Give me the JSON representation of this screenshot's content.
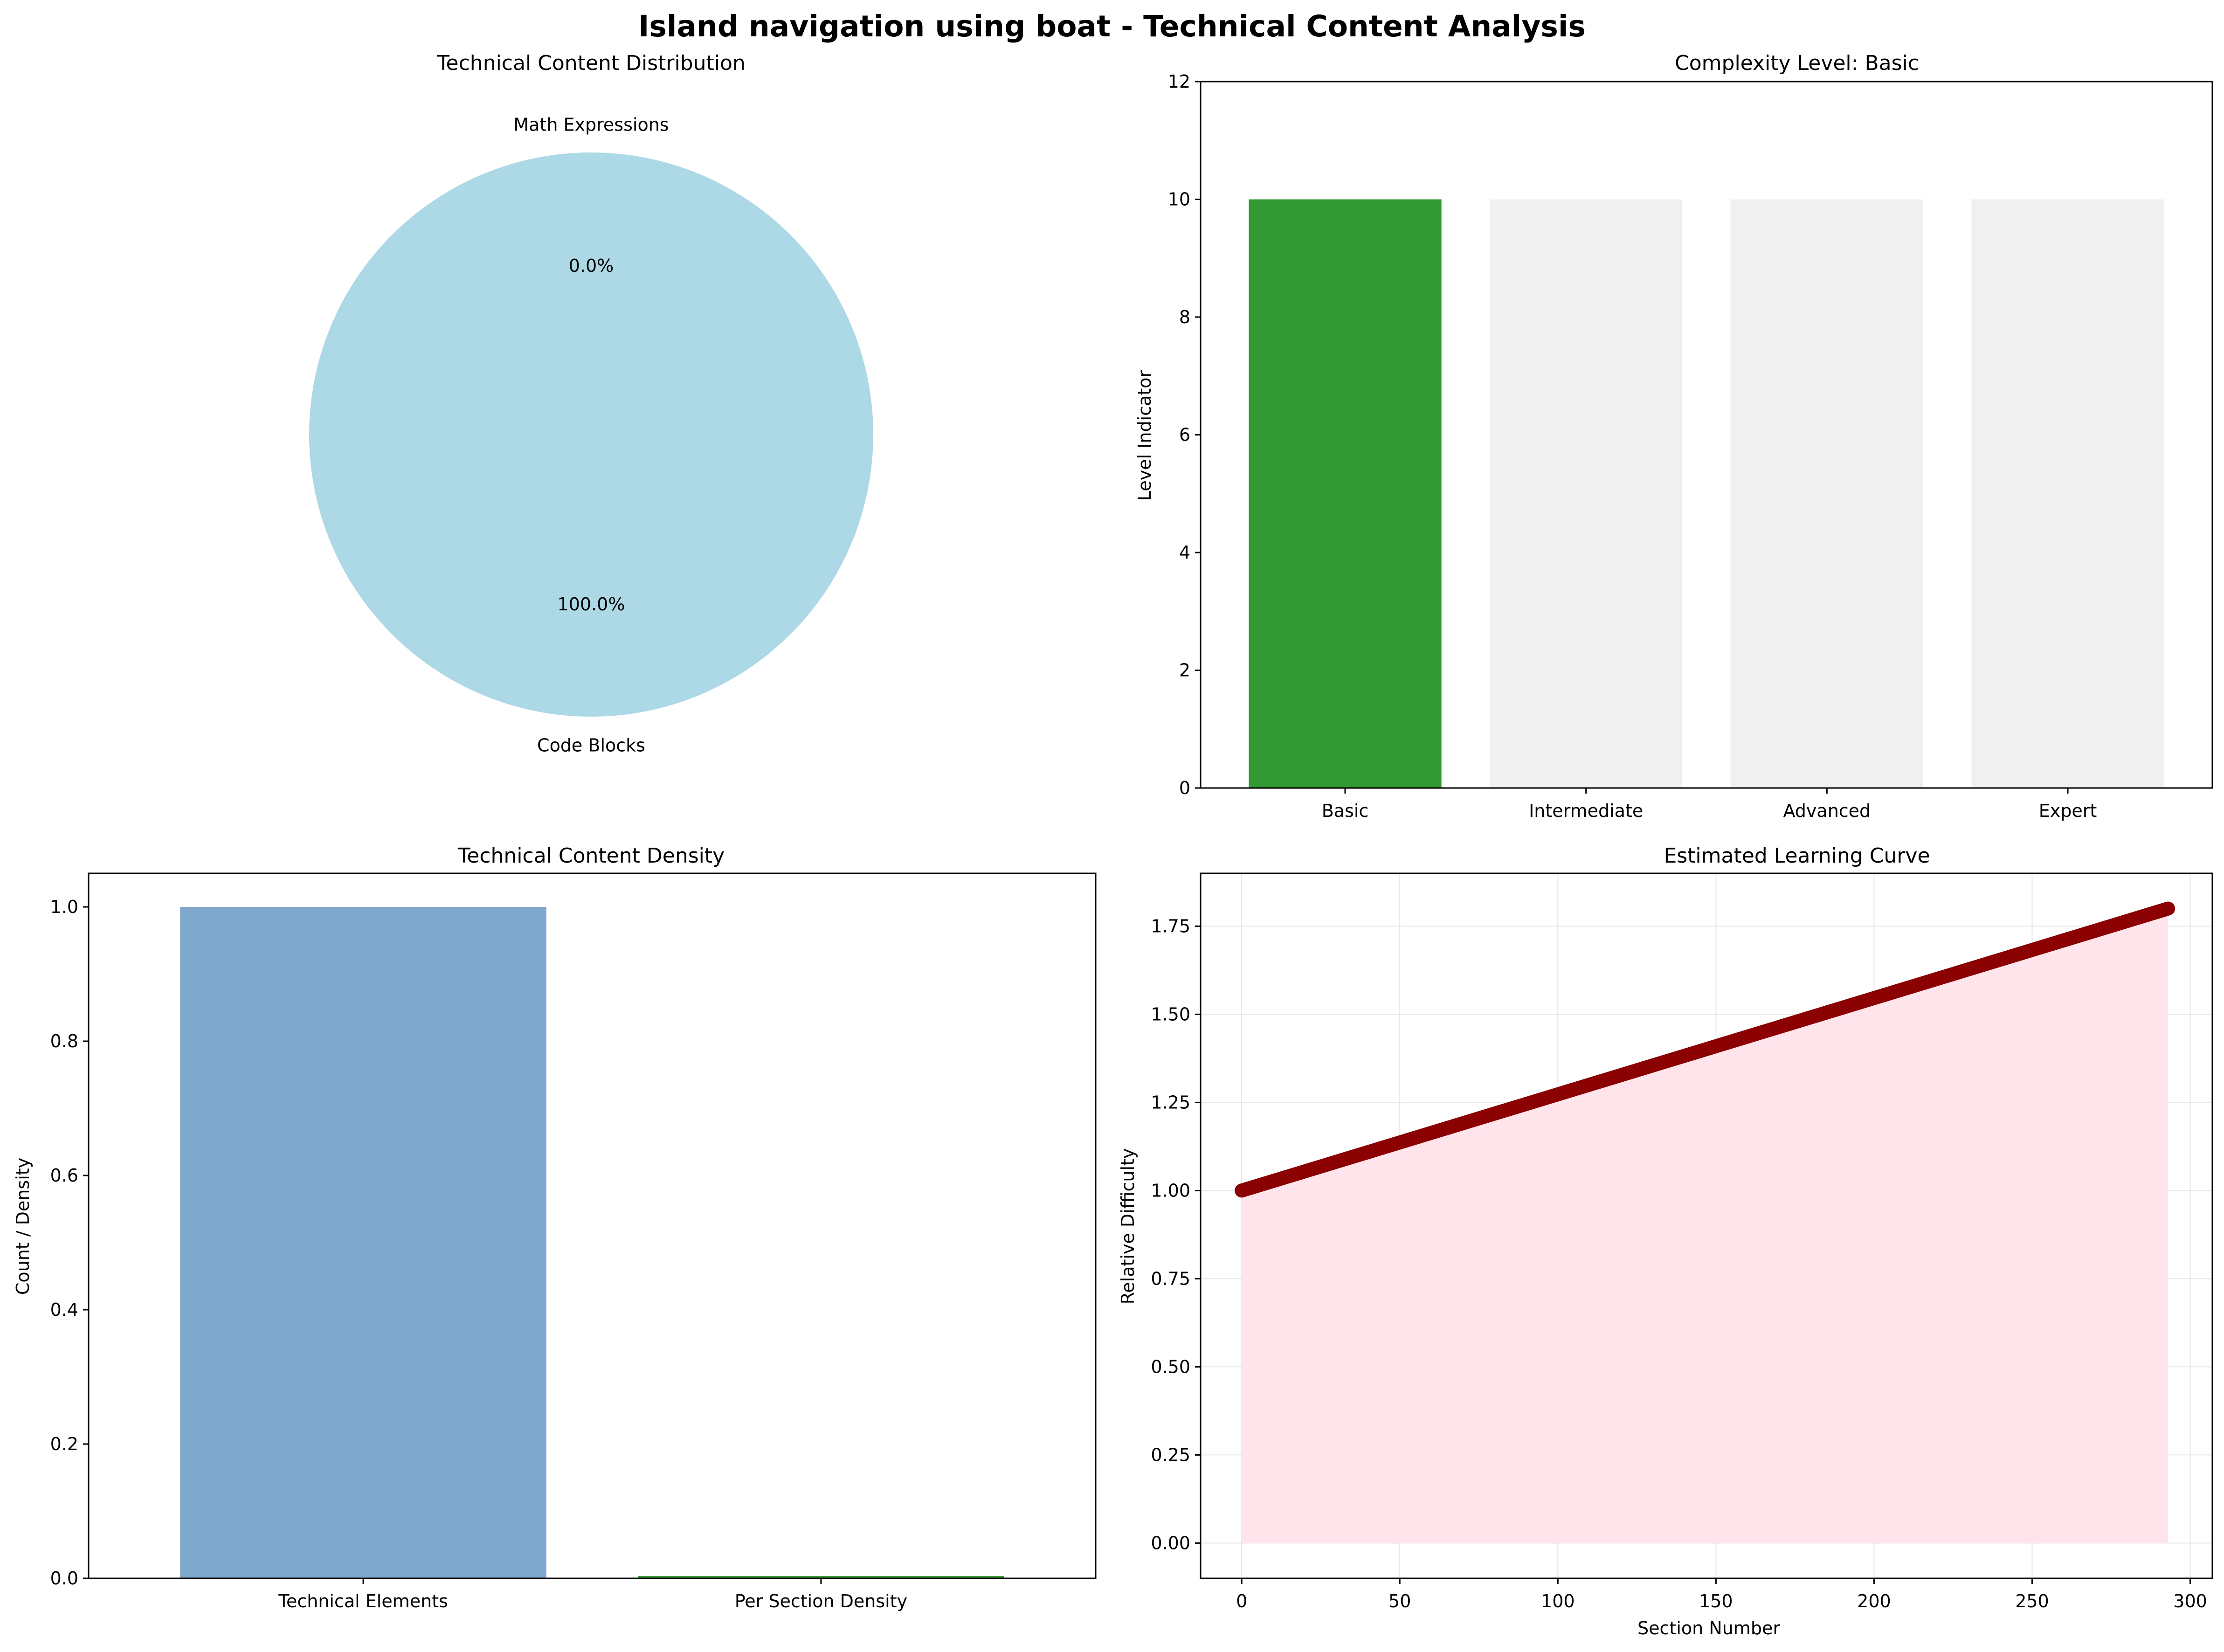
{
  "figure": {
    "suptitle": "Island navigation using boat - Technical Content Analysis"
  },
  "chart_data": [
    {
      "type": "pie",
      "title": "Technical Content Distribution",
      "labels": [
        "Code Blocks",
        "Math Expressions"
      ],
      "values": [
        1,
        0
      ],
      "percent_labels": [
        "100.0%",
        "0.0%"
      ],
      "colors": [
        "#add8e6",
        "#f08080"
      ]
    },
    {
      "type": "bar",
      "title": "Complexity Level: Basic",
      "categories": [
        "Basic",
        "Intermediate",
        "Advanced",
        "Expert"
      ],
      "values": [
        10,
        10,
        10,
        10
      ],
      "colors": [
        "#339933",
        "#f0f0f0",
        "#f0f0f0",
        "#f0f0f0"
      ],
      "xlabel": "",
      "ylabel": "Level Indicator",
      "ylim": [
        0,
        12
      ],
      "yticks": [
        0,
        2,
        4,
        6,
        8,
        10,
        12
      ],
      "grid": false
    },
    {
      "type": "bar",
      "title": "Technical Content Density",
      "categories": [
        "Technical Elements",
        "Per Section Density"
      ],
      "values": [
        1.0,
        0.0034
      ],
      "colors": [
        "#7ea7cb",
        "#339933"
      ],
      "xlabel": "",
      "ylabel": "Count / Density",
      "ylim": [
        0,
        1.05
      ],
      "yticks": [
        "0.0",
        "0.2",
        "0.4",
        "0.6",
        "0.8",
        "1.0"
      ],
      "grid": false
    },
    {
      "type": "line",
      "title": "Estimated Learning Curve",
      "xlabel": "Section Number",
      "ylabel": "Relative Difficulty",
      "x_start": 0,
      "x_end": 293,
      "y_start": 1.0,
      "y_end": 1.8,
      "xlim": [
        -13,
        307
      ],
      "ylim": [
        -0.1,
        1.9
      ],
      "xticks": [
        "0",
        "50",
        "100",
        "150",
        "200",
        "250",
        "300"
      ],
      "yticks": [
        "0.00",
        "0.25",
        "0.50",
        "0.75",
        "1.00",
        "1.25",
        "1.50",
        "1.75"
      ],
      "line_color": "#8b0000",
      "fill_color": "#ffe4ec",
      "grid": true
    }
  ]
}
